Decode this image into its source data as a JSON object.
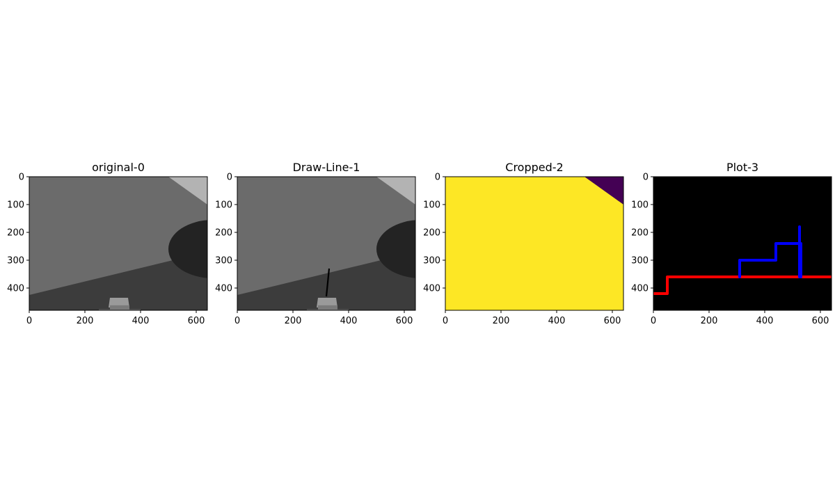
{
  "chart_data": [
    {
      "type": "image",
      "title": "original-0",
      "xlim": [
        0,
        640
      ],
      "ylim": [
        480,
        0
      ],
      "xticks": [
        0,
        200,
        400,
        600
      ],
      "yticks": [
        0,
        100,
        200,
        300,
        400
      ],
      "content": {
        "background": "#6b6b6b",
        "upper_right_region_color": "#b3b3b3",
        "lower_region_color": "#3c3c3c",
        "circle_color": "#232323",
        "object_color": "#9a9a9a"
      }
    },
    {
      "type": "image",
      "title": "Draw-Line-1",
      "xlim": [
        0,
        640
      ],
      "ylim": [
        480,
        0
      ],
      "xticks": [
        0,
        200,
        400,
        600
      ],
      "yticks": [
        0,
        100,
        200,
        300,
        400
      ],
      "line": {
        "x": [
          320,
          330
        ],
        "y": [
          430,
          330
        ],
        "color": "#000000"
      }
    },
    {
      "type": "heatmap",
      "title": "Cropped-2",
      "xlim": [
        0,
        640
      ],
      "ylim": [
        480,
        0
      ],
      "xticks": [
        0,
        200,
        400,
        600
      ],
      "yticks": [
        0,
        100,
        200,
        300,
        400
      ],
      "colors": {
        "main": "#fde725",
        "corner": "#440154"
      },
      "corner_polygon": {
        "x": [
          500,
          640,
          640
        ],
        "y": [
          0,
          0,
          100
        ]
      }
    },
    {
      "type": "line",
      "title": "Plot-3",
      "xlim": [
        0,
        640
      ],
      "ylim": [
        480,
        0
      ],
      "xticks": [
        0,
        200,
        400,
        600
      ],
      "yticks": [
        0,
        100,
        200,
        300,
        400
      ],
      "background": "#000000",
      "series": [
        {
          "color": "#ff0000",
          "x": [
            0,
            50,
            50,
            640
          ],
          "y": [
            420,
            420,
            360,
            360
          ]
        },
        {
          "color": "#0000ff",
          "x": [
            310,
            310,
            440,
            440,
            530,
            530,
            525,
            525
          ],
          "y": [
            360,
            300,
            300,
            240,
            240,
            360,
            360,
            180
          ]
        }
      ]
    }
  ]
}
